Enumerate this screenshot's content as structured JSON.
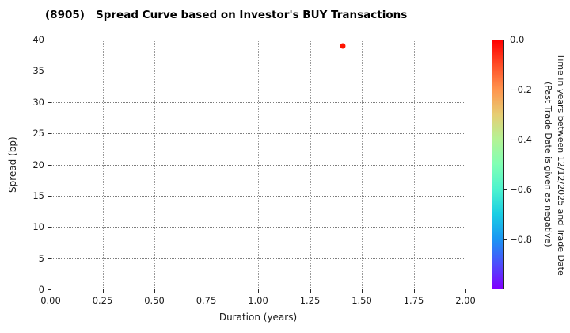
{
  "title": "(8905)   Spread Curve based on Investor's BUY Transactions",
  "chart_data": {
    "type": "scatter",
    "title": "(8905)   Spread Curve based on Investor's BUY Transactions",
    "xlabel": "Duration (years)",
    "ylabel": "Spread (bp)",
    "xlim": [
      0.0,
      2.0
    ],
    "ylim": [
      0,
      40
    ],
    "x_ticks": [
      "0.00",
      "0.25",
      "0.50",
      "0.75",
      "1.00",
      "1.25",
      "1.50",
      "1.75",
      "2.00"
    ],
    "y_ticks": [
      "0",
      "5",
      "10",
      "15",
      "20",
      "25",
      "30",
      "35",
      "40"
    ],
    "grid": true,
    "grid_style": "dotted",
    "legend": "none",
    "points": [
      {
        "duration_years": 1.41,
        "spread_bp": 39.0,
        "time_value": 0.0,
        "color": "#ff1400"
      }
    ],
    "colorbar": {
      "title_line1": "Time in years between 12/12/2025 and Trade Date",
      "title_line2": "(Past Trade Date is given as negative)",
      "tick_labels": [
        "0.0",
        "−0.2",
        "−0.4",
        "−0.6",
        "−0.8"
      ],
      "tick_values": [
        0.0,
        -0.2,
        -0.4,
        -0.6,
        -0.8
      ],
      "max": 0.0,
      "min": -1.0,
      "colormap": "rainbow",
      "gradient_top_to_bottom": [
        "#ff0000",
        "#ff4f28",
        "#ff964f",
        "#e6ce74",
        "#b3f396",
        "#80ffb4",
        "#4df3ce",
        "#1acee3",
        "#1a96f3",
        "#4d4ffc",
        "#8000ff"
      ]
    }
  }
}
